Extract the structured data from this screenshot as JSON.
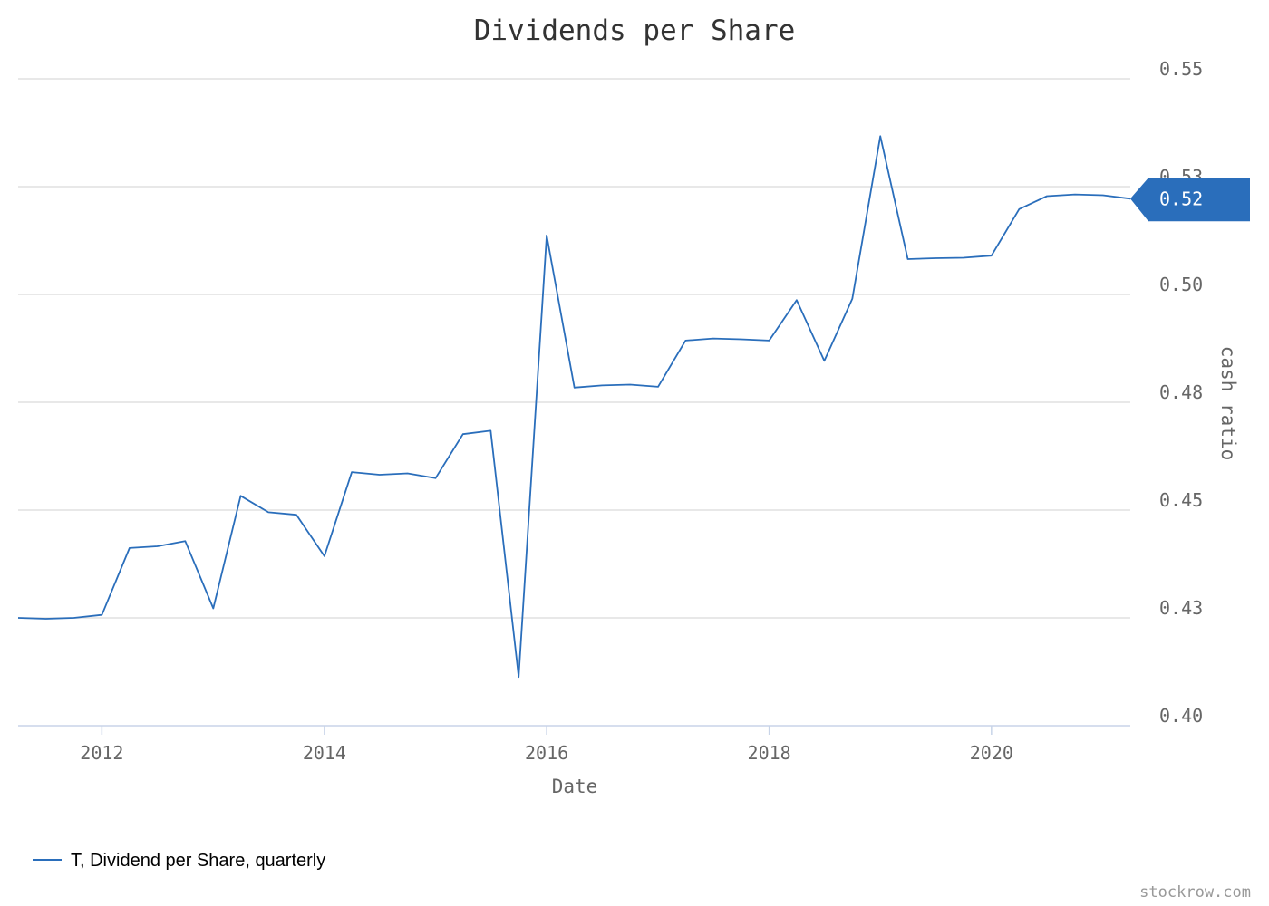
{
  "chart_data": {
    "type": "line",
    "title": "Dividends per Share",
    "xlabel": "Date",
    "ylabel": "cash ratio",
    "ylim": [
      0.4,
      0.55
    ],
    "xlim": [
      "2011-04-01",
      "2021-04-01"
    ],
    "y_ticks": [
      "0.40",
      "0.43",
      "0.45",
      "0.48",
      "0.50",
      "0.53",
      "0.55"
    ],
    "y_tick_values": [
      0.4,
      0.425,
      0.45,
      0.475,
      0.5,
      0.525,
      0.55
    ],
    "x_ticks": [
      "2012",
      "2014",
      "2016",
      "2018",
      "2020"
    ],
    "x_tick_values": [
      "2012-01-01",
      "2014-01-01",
      "2016-01-01",
      "2018-01-01",
      "2020-01-01"
    ],
    "grid": true,
    "legend_position": "bottom-left",
    "last_value_label": "0.52",
    "colors": {
      "series": "#2a6ebb",
      "grid": "#e0e0e0",
      "axis": "#c8d4e8",
      "text": "#666666",
      "title": "#333333"
    },
    "series": [
      {
        "name": "T, Dividend per Share, quarterly",
        "x": [
          "2011-04-01",
          "2011-07-01",
          "2011-10-01",
          "2012-01-01",
          "2012-04-01",
          "2012-07-01",
          "2012-10-01",
          "2013-01-01",
          "2013-04-01",
          "2013-07-01",
          "2013-10-01",
          "2014-01-01",
          "2014-04-01",
          "2014-07-01",
          "2014-10-01",
          "2015-01-01",
          "2015-04-01",
          "2015-07-01",
          "2015-10-01",
          "2016-01-01",
          "2016-04-01",
          "2016-07-01",
          "2016-10-01",
          "2017-01-01",
          "2017-04-01",
          "2017-07-01",
          "2017-10-01",
          "2018-01-01",
          "2018-04-01",
          "2018-07-01",
          "2018-10-01",
          "2019-01-01",
          "2019-04-01",
          "2019-07-01",
          "2019-10-01",
          "2020-01-01",
          "2020-04-01",
          "2020-07-01",
          "2020-10-01",
          "2021-01-01",
          "2021-04-01"
        ],
        "values": [
          0.425,
          0.4248,
          0.425,
          0.4257,
          0.4412,
          0.4416,
          0.4428,
          0.4272,
          0.4533,
          0.4495,
          0.4489,
          0.4393,
          0.4588,
          0.4582,
          0.4585,
          0.4574,
          0.4676,
          0.4684,
          0.4113,
          0.5137,
          0.4784,
          0.4789,
          0.4791,
          0.4786,
          0.4893,
          0.4898,
          0.4896,
          0.4893,
          0.4987,
          0.4846,
          0.499,
          0.5367,
          0.5082,
          0.5084,
          0.5085,
          0.509,
          0.5198,
          0.5228,
          0.5232,
          0.523,
          0.5222
        ]
      }
    ]
  },
  "legend": {
    "label": "T, Dividend per Share, quarterly"
  },
  "watermark": "stockrow.com"
}
